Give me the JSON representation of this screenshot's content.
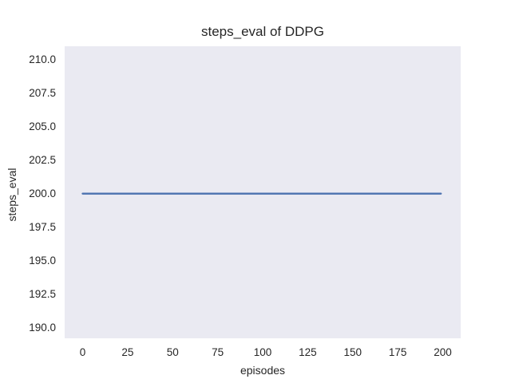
{
  "chart_data": {
    "type": "line",
    "title": "steps_eval of DDPG",
    "xlabel": "episodes",
    "ylabel": "steps_eval",
    "x_ticks": [
      0,
      25,
      50,
      75,
      100,
      125,
      150,
      175,
      200
    ],
    "x_tick_labels": [
      "0",
      "25",
      "50",
      "75",
      "100",
      "125",
      "150",
      "175",
      "200"
    ],
    "y_ticks": [
      190.0,
      192.5,
      195.0,
      197.5,
      200.0,
      202.5,
      205.0,
      207.5,
      210.0
    ],
    "y_tick_labels": [
      "190.0",
      "192.5",
      "195.0",
      "197.5",
      "200.0",
      "202.5",
      "205.0",
      "207.5",
      "210.0"
    ],
    "xlim": [
      -10,
      210
    ],
    "ylim": [
      189.2,
      211.0
    ],
    "grid": true,
    "legend": false,
    "series": [
      {
        "name": "steps_eval",
        "x": [
          0,
          199
        ],
        "y": [
          200,
          200
        ],
        "color": "#4c72b0",
        "linewidth": 2.4
      }
    ],
    "style": {
      "figure_bg": "#ffffff",
      "plot_bg": "#eaeaf2",
      "grid_color": "#ffffff",
      "text_color": "#262626"
    }
  }
}
